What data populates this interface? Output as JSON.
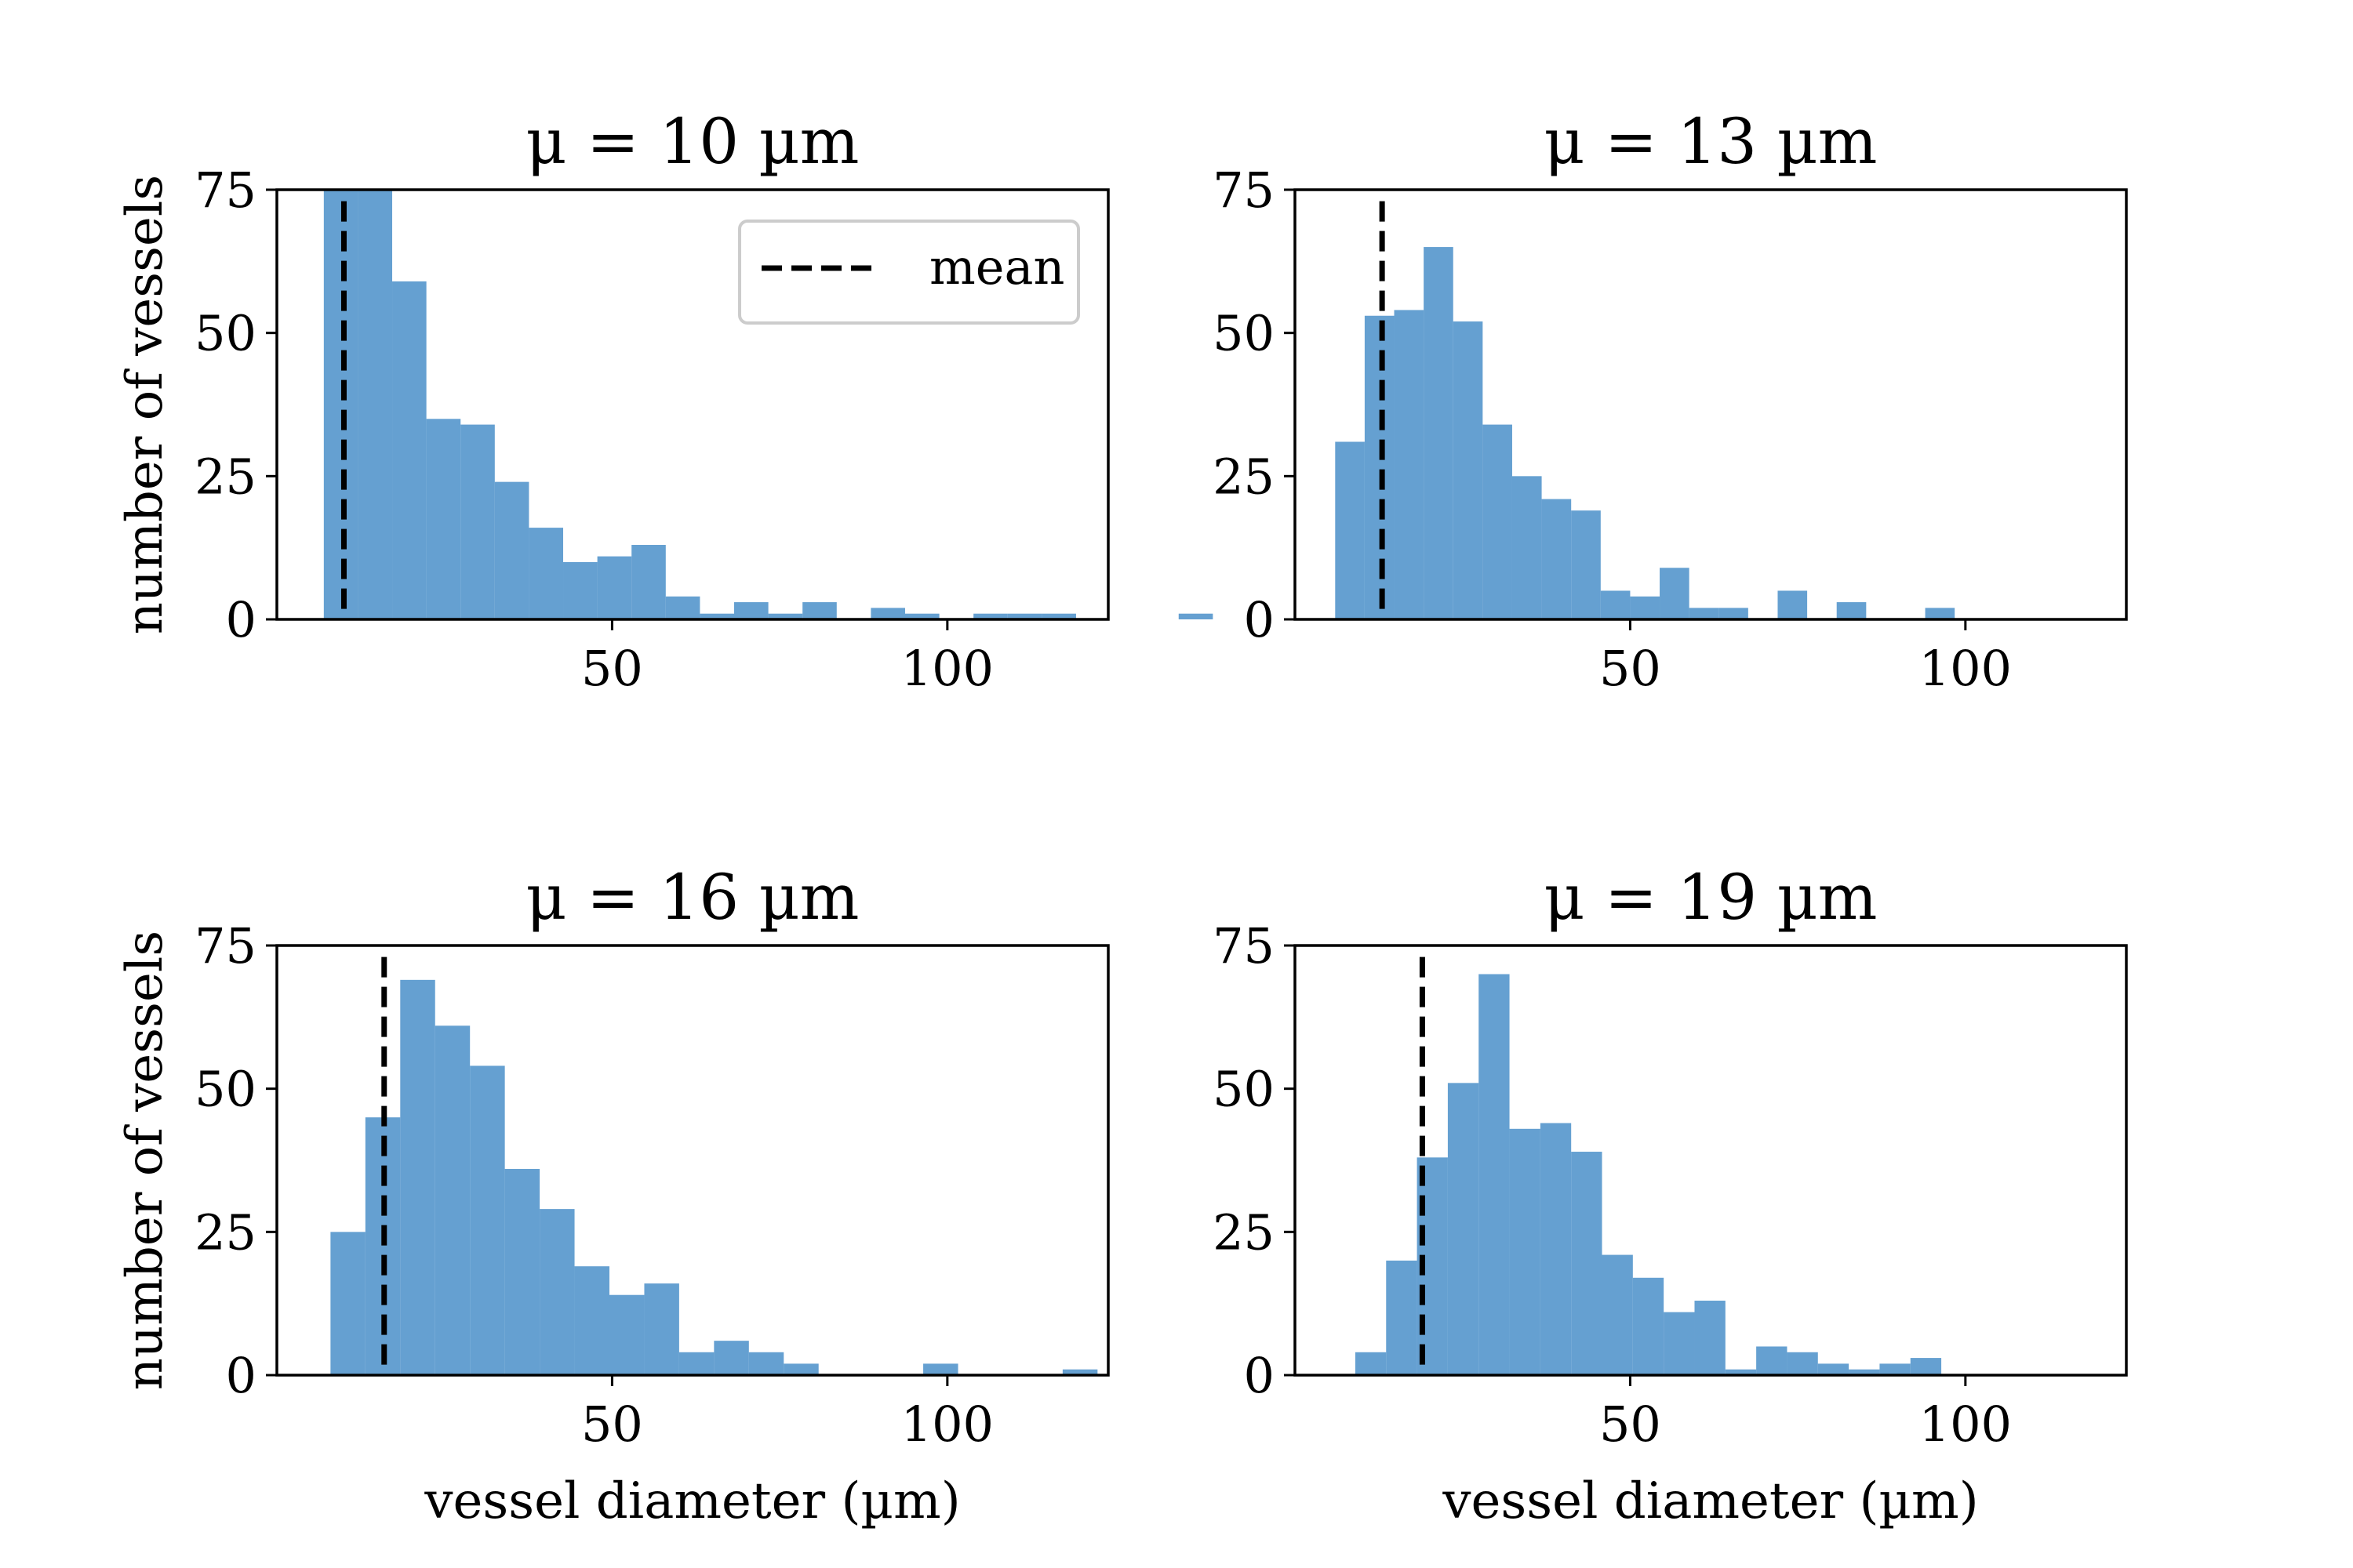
{
  "figure": {
    "ylabel": "number of vessels",
    "xlabel": "vessel diameter (µm)",
    "legend_label": "mean",
    "bar_color": "#3f88c5",
    "bar_opacity": 0.8,
    "mean_line_color": "#000000"
  },
  "chart_data": [
    {
      "type": "bar",
      "title": "μ = 10 µm",
      "xlim": [
        0,
        124
      ],
      "ylim": [
        0,
        75
      ],
      "xticks": [
        50,
        100
      ],
      "yticks": [
        0,
        25,
        50,
        75
      ],
      "mean": 10,
      "show_ylabel": true,
      "show_xlabel": false,
      "legend": "top-right",
      "bin_width": 5.1,
      "bins_start": 7,
      "values": [
        75,
        75,
        59,
        35,
        34,
        24,
        16,
        10,
        11,
        13,
        4,
        1,
        3,
        1,
        3,
        0,
        2,
        1,
        0,
        1,
        1,
        1,
        0,
        0,
        0,
        1
      ]
    },
    {
      "type": "bar",
      "title": "μ = 13 µm",
      "xlim": [
        0,
        124
      ],
      "ylim": [
        0,
        75
      ],
      "xticks": [
        50,
        100
      ],
      "yticks": [
        0,
        25,
        50,
        75
      ],
      "mean": 13,
      "show_ylabel": false,
      "show_xlabel": false,
      "legend": "none",
      "bin_width": 4.4,
      "bins_start": 6,
      "values": [
        31,
        53,
        54,
        65,
        52,
        34,
        25,
        21,
        19,
        5,
        4,
        9,
        2,
        2,
        0,
        5,
        0,
        3,
        0,
        0,
        2
      ]
    },
    {
      "type": "bar",
      "title": "μ = 16 µm",
      "xlim": [
        0,
        124
      ],
      "ylim": [
        0,
        75
      ],
      "xticks": [
        50,
        100
      ],
      "yticks": [
        0,
        25,
        50,
        75
      ],
      "mean": 16,
      "show_ylabel": true,
      "show_xlabel": true,
      "legend": "none",
      "bin_width": 5.2,
      "bins_start": 8,
      "values": [
        25,
        45,
        69,
        61,
        54,
        36,
        29,
        19,
        14,
        16,
        4,
        6,
        4,
        2,
        0,
        0,
        0,
        2,
        0,
        0,
        0,
        1
      ]
    },
    {
      "type": "bar",
      "title": "μ = 19 µm",
      "xlim": [
        0,
        124
      ],
      "ylim": [
        0,
        75
      ],
      "xticks": [
        50,
        100
      ],
      "yticks": [
        0,
        25,
        50,
        75
      ],
      "mean": 19,
      "show_ylabel": false,
      "show_xlabel": true,
      "legend": "none",
      "bin_width": 4.6,
      "bins_start": 9,
      "values": [
        4,
        20,
        38,
        51,
        70,
        43,
        44,
        39,
        21,
        17,
        11,
        13,
        1,
        5,
        4,
        2,
        1,
        2,
        3
      ]
    }
  ]
}
